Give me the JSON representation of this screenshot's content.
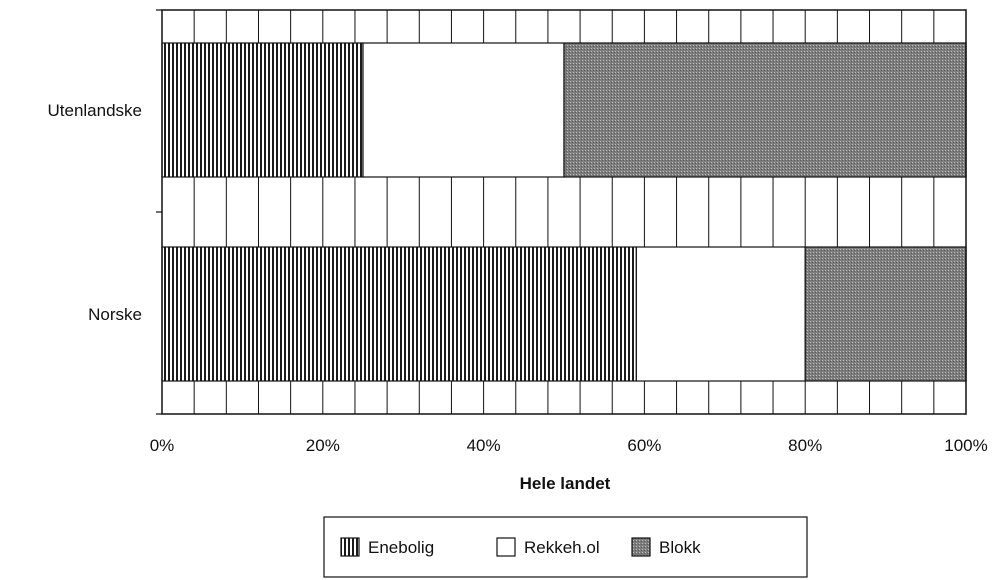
{
  "chart_data": {
    "type": "bar",
    "orientation": "horizontal",
    "stacked": "percent",
    "title": "",
    "xlabel": "Hele landet",
    "ylabel": "",
    "categories": [
      "Utenlandske",
      "Norske"
    ],
    "series": [
      {
        "name": "Enebolig",
        "values": [
          25,
          59
        ],
        "pattern": "vertical-stripes",
        "color": "#1a1a1a"
      },
      {
        "name": "Rekkeh.ol",
        "values": [
          25,
          21
        ],
        "pattern": "solid",
        "color": "#ffffff"
      },
      {
        "name": "Blokk",
        "values": [
          50,
          20
        ],
        "pattern": "dotted-gray",
        "color": "#8a8a8a"
      }
    ],
    "xlim": [
      0,
      100
    ],
    "xticks": [
      0,
      20,
      40,
      60,
      80,
      100
    ],
    "xtick_labels": [
      "0%",
      "20%",
      "40%",
      "60%",
      "80%",
      "100%"
    ],
    "grid": "vertical lines at 4% intervals",
    "legend": "bottom-center"
  }
}
